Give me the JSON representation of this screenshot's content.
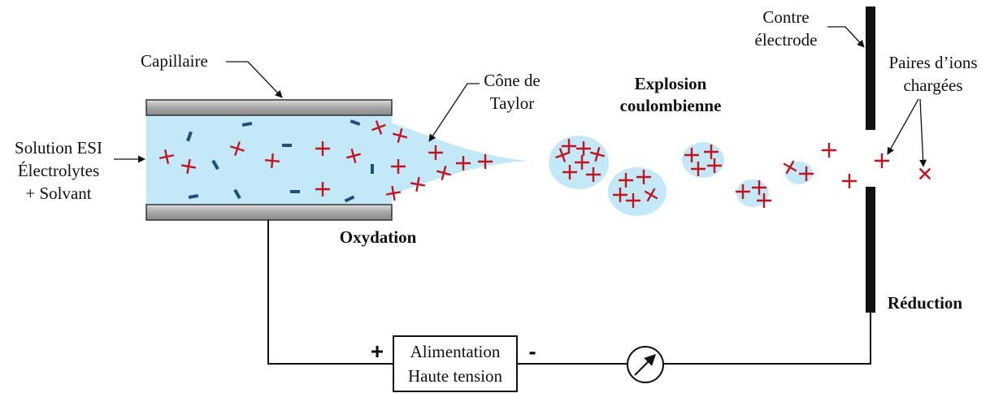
{
  "labels": {
    "capillaire": "Capillaire",
    "solution": [
      "Solution ESI",
      "Électrolytes",
      "+ Solvant"
    ],
    "cone": [
      "Cône de",
      "Taylor"
    ],
    "explosion": [
      "Explosion",
      "coulombienne"
    ],
    "contre": [
      "Contre",
      "électrode"
    ],
    "paires": [
      "Paires d’ions",
      "chargées"
    ],
    "oxydation": "Oxydation",
    "reduction": "Réduction",
    "alimentation": [
      "Alimentation",
      "Haute tension"
    ],
    "plus": "+",
    "minus": "-"
  },
  "colors": {
    "solution_fill": "#c3e9f8",
    "cation": "#c0141e",
    "anion": "#1c4e80",
    "electrode": "#111111",
    "capillary": "#a6a6a6"
  },
  "icons": [
    "ammeter-icon",
    "cation-symbol",
    "anion-symbol"
  ]
}
